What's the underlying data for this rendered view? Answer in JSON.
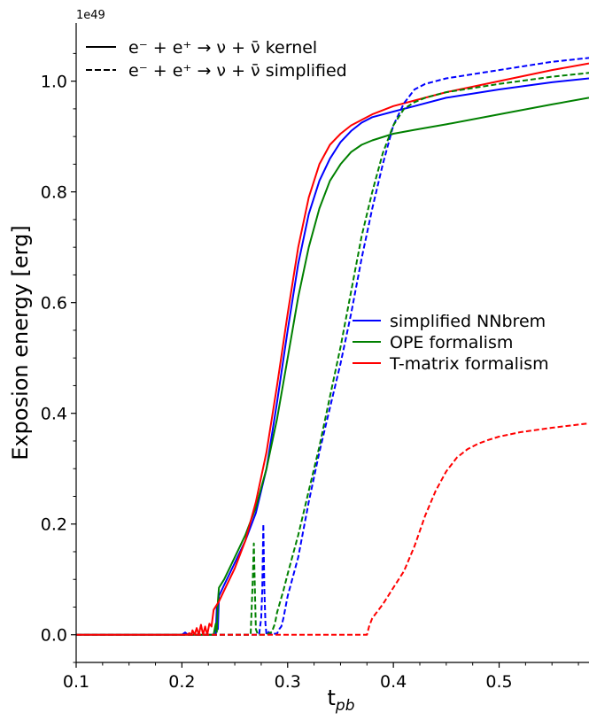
{
  "chart_data": {
    "type": "line",
    "exponent_label": "1e49",
    "xlabel": "t",
    "xlabel_sub": "pb",
    "ylabel": "Exposion energy [erg]",
    "xlim": [
      0.1,
      0.585
    ],
    "ylim": [
      -0.05,
      1.105
    ],
    "xticks": [
      0.1,
      0.2,
      0.3,
      0.4,
      0.5
    ],
    "xtick_labels": [
      "0.1",
      "0.2",
      "0.3",
      "0.4",
      "0.5"
    ],
    "yticks": [
      0.0,
      0.2,
      0.4,
      0.6,
      0.8,
      1.0
    ],
    "ytick_labels": [
      "0.0",
      "0.2",
      "0.4",
      "0.6",
      "0.8",
      "1.0"
    ],
    "grid": false,
    "style_legend": {
      "placement": "top-left",
      "entries": [
        {
          "label": "e⁻ + e⁺ → ν + ν̄ kernel",
          "dash": "solid"
        },
        {
          "label": "e⁻ + e⁺ → ν + ν̄ simplified",
          "dash": "dashed"
        }
      ]
    },
    "color_legend": {
      "placement": "center-right",
      "entries": [
        {
          "label": "simplified NNbrem",
          "color": "#0000ff"
        },
        {
          "label": "OPE formalism",
          "color": "#008000"
        },
        {
          "label": "T-matrix formalism",
          "color": "#ff0000"
        }
      ]
    },
    "series": [
      {
        "color": "#0000ff",
        "dash": "solid",
        "x": [
          0.1,
          0.2,
          0.203,
          0.205,
          0.207,
          0.232,
          0.233,
          0.234,
          0.235,
          0.24,
          0.25,
          0.26,
          0.27,
          0.28,
          0.29,
          0.3,
          0.31,
          0.32,
          0.33,
          0.34,
          0.35,
          0.36,
          0.37,
          0.38,
          0.4,
          0.42,
          0.45,
          0.5,
          0.55,
          0.585
        ],
        "y": [
          0,
          0,
          0.004,
          0.001,
          0,
          0,
          0.05,
          0.01,
          0.07,
          0.09,
          0.13,
          0.17,
          0.22,
          0.3,
          0.42,
          0.55,
          0.67,
          0.76,
          0.82,
          0.86,
          0.89,
          0.91,
          0.925,
          0.935,
          0.945,
          0.955,
          0.97,
          0.985,
          0.998,
          1.005
        ]
      },
      {
        "color": "#008000",
        "dash": "solid",
        "x": [
          0.1,
          0.23,
          0.232,
          0.233,
          0.234,
          0.235,
          0.24,
          0.25,
          0.26,
          0.27,
          0.28,
          0.29,
          0.3,
          0.31,
          0.32,
          0.33,
          0.34,
          0.35,
          0.36,
          0.37,
          0.38,
          0.4,
          0.42,
          0.45,
          0.5,
          0.55,
          0.585
        ],
        "y": [
          0,
          0,
          0.02,
          0.005,
          0.06,
          0.085,
          0.1,
          0.14,
          0.18,
          0.23,
          0.3,
          0.39,
          0.5,
          0.61,
          0.7,
          0.77,
          0.82,
          0.85,
          0.872,
          0.885,
          0.893,
          0.905,
          0.912,
          0.922,
          0.94,
          0.958,
          0.97
        ]
      },
      {
        "color": "#ff0000",
        "dash": "solid",
        "x": [
          0.1,
          0.205,
          0.207,
          0.209,
          0.21,
          0.212,
          0.214,
          0.216,
          0.218,
          0.22,
          0.222,
          0.224,
          0.226,
          0.228,
          0.23,
          0.235,
          0.24,
          0.25,
          0.26,
          0.27,
          0.28,
          0.29,
          0.3,
          0.31,
          0.32,
          0.33,
          0.34,
          0.35,
          0.36,
          0.37,
          0.38,
          0.4,
          0.42,
          0.45,
          0.5,
          0.55,
          0.585
        ],
        "y": [
          0,
          0,
          0.003,
          0,
          0.008,
          0,
          0.012,
          0,
          0.018,
          0,
          0.015,
          0,
          0.02,
          0.015,
          0.045,
          0.06,
          0.08,
          0.12,
          0.17,
          0.24,
          0.33,
          0.45,
          0.58,
          0.7,
          0.79,
          0.85,
          0.885,
          0.905,
          0.92,
          0.93,
          0.94,
          0.955,
          0.965,
          0.98,
          1.0,
          1.02,
          1.032
        ]
      },
      {
        "color": "#0000ff",
        "dash": "dashed",
        "x": [
          0.1,
          0.273,
          0.275,
          0.276,
          0.277,
          0.278,
          0.279,
          0.28,
          0.282,
          0.285,
          0.288,
          0.29,
          0.292,
          0.294,
          0.296,
          0.3,
          0.31,
          0.32,
          0.33,
          0.34,
          0.35,
          0.36,
          0.37,
          0.38,
          0.39,
          0.4,
          0.41,
          0.42,
          0.43,
          0.45,
          0.5,
          0.55,
          0.585
        ],
        "y": [
          0,
          0,
          0.03,
          0.08,
          0.2,
          0.08,
          0.02,
          0,
          0.005,
          0,
          0.002,
          0.002,
          0.01,
          0.015,
          0.03,
          0.07,
          0.14,
          0.24,
          0.33,
          0.41,
          0.49,
          0.58,
          0.68,
          0.77,
          0.85,
          0.92,
          0.96,
          0.985,
          0.995,
          1.005,
          1.02,
          1.035,
          1.042
        ]
      },
      {
        "color": "#008000",
        "dash": "dashed",
        "x": [
          0.1,
          0.265,
          0.267,
          0.268,
          0.269,
          0.27,
          0.272,
          0.28,
          0.285,
          0.288,
          0.29,
          0.293,
          0.296,
          0.3,
          0.31,
          0.32,
          0.33,
          0.34,
          0.35,
          0.36,
          0.37,
          0.38,
          0.39,
          0.4,
          0.41,
          0.42,
          0.43,
          0.45,
          0.5,
          0.55,
          0.585
        ],
        "y": [
          0,
          0,
          0.1,
          0.165,
          0.08,
          0.01,
          0,
          0,
          0.005,
          0.02,
          0.04,
          0.06,
          0.08,
          0.11,
          0.18,
          0.26,
          0.34,
          0.43,
          0.52,
          0.62,
          0.72,
          0.8,
          0.87,
          0.92,
          0.95,
          0.962,
          0.97,
          0.98,
          0.995,
          1.008,
          1.015
        ]
      },
      {
        "color": "#ff0000",
        "dash": "dashed",
        "x": [
          0.1,
          0.375,
          0.377,
          0.38,
          0.39,
          0.4,
          0.41,
          0.42,
          0.43,
          0.44,
          0.45,
          0.46,
          0.47,
          0.48,
          0.49,
          0.5,
          0.52,
          0.55,
          0.585
        ],
        "y": [
          0,
          0,
          0.015,
          0.03,
          0.055,
          0.085,
          0.115,
          0.16,
          0.215,
          0.26,
          0.295,
          0.32,
          0.335,
          0.345,
          0.352,
          0.358,
          0.366,
          0.374,
          0.382
        ]
      }
    ]
  }
}
